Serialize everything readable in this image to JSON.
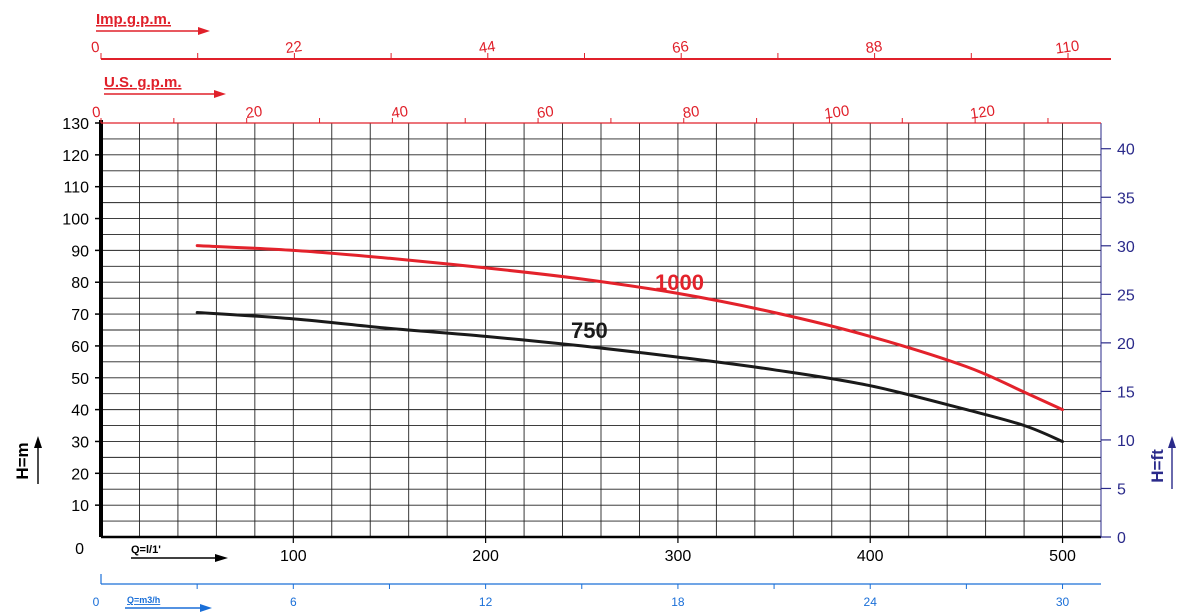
{
  "chart_data": {
    "type": "line",
    "title": "",
    "axes": {
      "imp_gpm": {
        "label": "Imp.g.p.m.",
        "ticks": [
          "0",
          "22",
          "44",
          "66",
          "88",
          "110"
        ],
        "range": [
          0,
          110
        ],
        "color": "#e0202a"
      },
      "us_gpm": {
        "label": "U.S. g.p.m.",
        "ticks": [
          "0",
          "20",
          "40",
          "60",
          "80",
          "100",
          "120"
        ],
        "range": [
          0,
          132
        ],
        "color": "#e0202a"
      },
      "x_lpm": {
        "label": "Q=l/1'",
        "ticks": [
          "0",
          "100",
          "200",
          "300",
          "400",
          "500"
        ],
        "range": [
          0,
          520
        ],
        "color": "#000000"
      },
      "x_m3h": {
        "label": "Q=m3/h",
        "ticks": [
          "0",
          "6",
          "12",
          "18",
          "24",
          "30"
        ],
        "range": [
          0,
          30
        ],
        "color": "#1a6fd8"
      },
      "y_m": {
        "label": "H=m",
        "ticks": [
          "0",
          "10",
          "20",
          "30",
          "40",
          "50",
          "60",
          "70",
          "80",
          "90",
          "100",
          "110",
          "120",
          "130"
        ],
        "range": [
          0,
          130
        ],
        "color": "#000000"
      },
      "y_ft": {
        "label": "H=ft",
        "ticks": [
          "0",
          "5",
          "10",
          "15",
          "20",
          "25",
          "30",
          "35",
          "40"
        ],
        "range": [
          0,
          42.65
        ],
        "color": "#2a2a8a"
      }
    },
    "grid": true,
    "x_units": "l/min",
    "y_units": "m",
    "series": [
      {
        "name": "1000",
        "color": "#e3222b",
        "points": [
          [
            50,
            91.5
          ],
          [
            100,
            90
          ],
          [
            150,
            87.5
          ],
          [
            200,
            84.5
          ],
          [
            250,
            81
          ],
          [
            300,
            76.5
          ],
          [
            350,
            70.5
          ],
          [
            400,
            63
          ],
          [
            450,
            53.5
          ],
          [
            480,
            45.5
          ],
          [
            500,
            40
          ]
        ]
      },
      {
        "name": "750",
        "color": "#1a1a1a",
        "points": [
          [
            50,
            70.5
          ],
          [
            100,
            68.5
          ],
          [
            150,
            65.5
          ],
          [
            200,
            63
          ],
          [
            250,
            60
          ],
          [
            300,
            56.5
          ],
          [
            350,
            52.5
          ],
          [
            400,
            47.5
          ],
          [
            450,
            40
          ],
          [
            480,
            35
          ],
          [
            500,
            30
          ]
        ]
      }
    ]
  }
}
